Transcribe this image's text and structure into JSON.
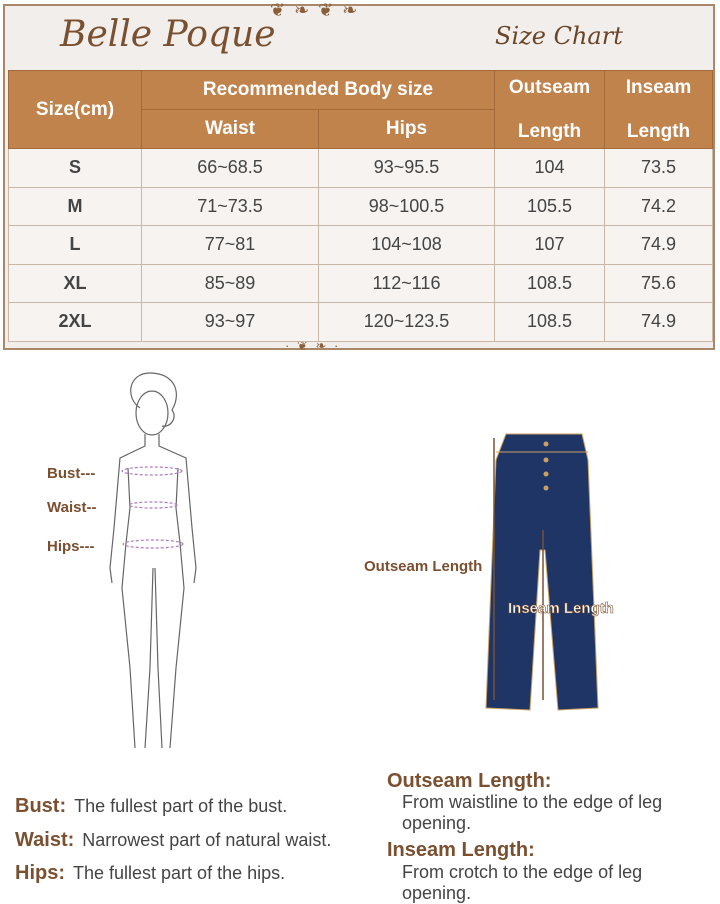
{
  "header": {
    "brand": "Belle Poque",
    "title": "Size Chart"
  },
  "table": {
    "col_size": "Size(cm)",
    "group": "Recommended Body size",
    "col_waist": "Waist",
    "col_hips": "Hips",
    "col_outseam": [
      "Outseam",
      "Length"
    ],
    "col_inseam": [
      "Inseam",
      "Length"
    ],
    "rows": [
      [
        "S",
        "66~68.5",
        "93~95.5",
        "104",
        "73.5"
      ],
      [
        "M",
        "71~73.5",
        "98~100.5",
        "105.5",
        "74.2"
      ],
      [
        "L",
        "77~81",
        "104~108",
        "107",
        "74.9"
      ],
      [
        "XL",
        "85~89",
        "112~116",
        "108.5",
        "75.6"
      ],
      [
        "2XL",
        "93~97",
        "120~123.5",
        "108.5",
        "74.9"
      ]
    ]
  },
  "figure_labels": {
    "bust": "Bust---",
    "waist": "Waist--",
    "hips": "Hips---"
  },
  "jeans_labels": {
    "outseam": "Outseam Length",
    "inseam": "Inseam Length"
  },
  "definitions": [
    {
      "term": "Bust:",
      "text": "The fullest part of the bust."
    },
    {
      "term": "Waist:",
      "text": "Narrowest part of natural waist."
    },
    {
      "term": "Hips:",
      "text": "The fullest part of the hips."
    }
  ],
  "measures": [
    {
      "term": "Outseam Length:",
      "text": "From waistline to the edge of leg opening."
    },
    {
      "term": "Inseam Length:",
      "text": "From crotch to the edge of leg opening."
    }
  ],
  "colors": {
    "header": "#c0834c",
    "brown": "#7a5030",
    "denim": "#1f3566"
  }
}
